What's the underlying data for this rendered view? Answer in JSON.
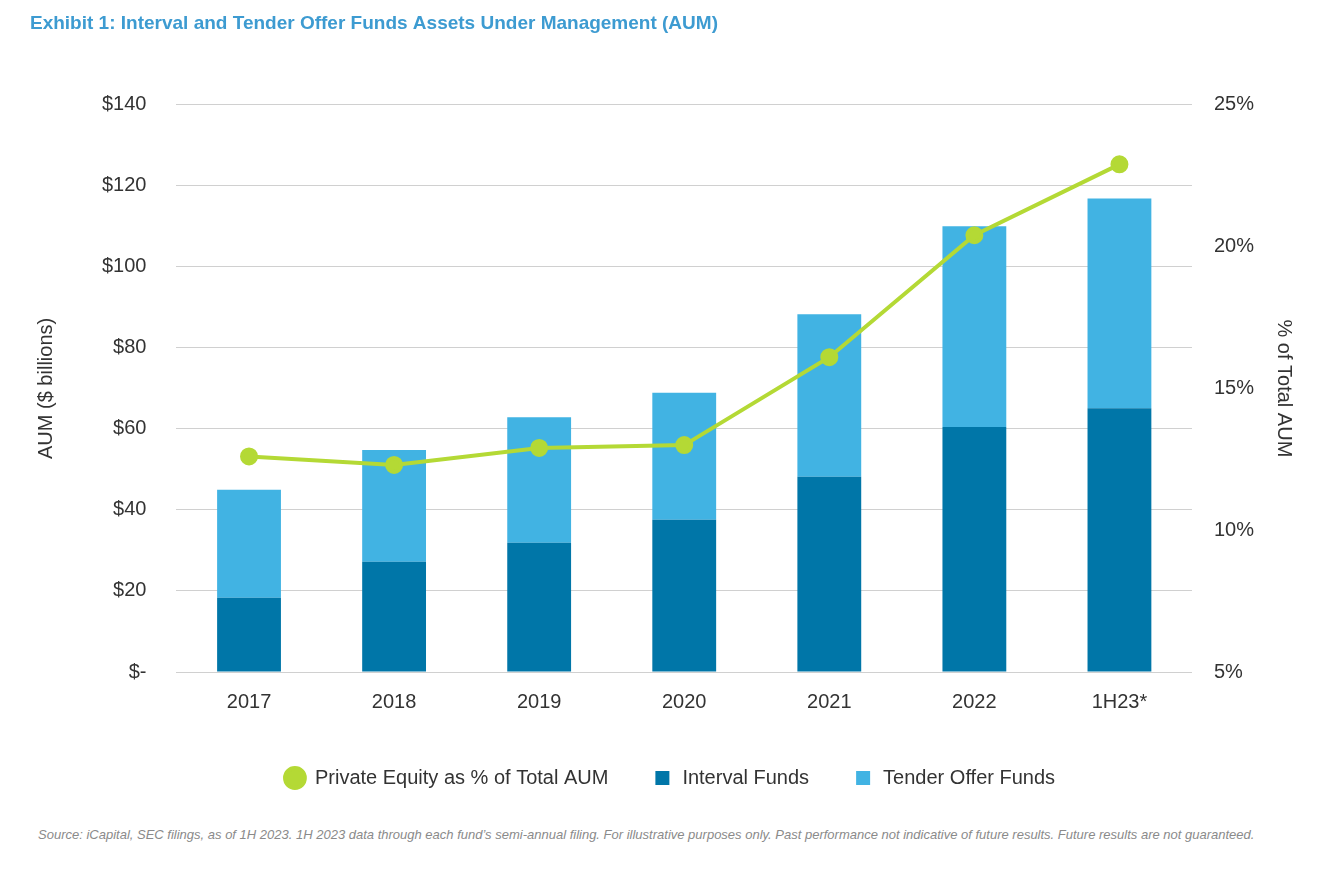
{
  "chart_data": {
    "type": "bar",
    "title": "Exhibit 1: Interval and Tender Offer Funds Assets Under Management (AUM)",
    "categories": [
      "2017",
      "2018",
      "2019",
      "2020",
      "2021",
      "2022",
      "1H23*"
    ],
    "series": [
      {
        "name": "Interval Funds",
        "color": "#0076a8",
        "values": [
          18.3,
          27.2,
          31.9,
          37.6,
          48.2,
          60.5,
          65.1
        ]
      },
      {
        "name": "Tender Offer Funds",
        "color": "#41b3e3",
        "values": [
          26.7,
          27.6,
          31.0,
          31.3,
          40.1,
          49.5,
          51.8
        ]
      },
      {
        "name": "Private Equity as % of Total AUM",
        "color": "#b4d935",
        "type": "line",
        "marker": "circle",
        "axis": "y2",
        "values": [
          12.6,
          12.3,
          12.9,
          13.0,
          16.1,
          20.4,
          22.9
        ]
      }
    ],
    "stacked": true,
    "ylabel": "AUM ($ billions)",
    "y2label": "% of Total AUM",
    "ylim": [
      0,
      140
    ],
    "yticks": [
      {
        "value": 0,
        "label": "$-"
      },
      {
        "value": 20,
        "label": "$20"
      },
      {
        "value": 40,
        "label": "$40"
      },
      {
        "value": 60,
        "label": "$60"
      },
      {
        "value": 80,
        "label": "$80"
      },
      {
        "value": 100,
        "label": "$100"
      },
      {
        "value": 120,
        "label": "$120"
      },
      {
        "value": 140,
        "label": "$140"
      }
    ],
    "y2lim": [
      5,
      25
    ],
    "y2ticks": [
      {
        "value": 5,
        "label": "5%"
      },
      {
        "value": 10,
        "label": "10%"
      },
      {
        "value": 15,
        "label": "15%"
      },
      {
        "value": 20,
        "label": "20%"
      },
      {
        "value": 25,
        "label": "25%"
      }
    ],
    "grid": true,
    "legend": "bottom",
    "source": "Source: iCapital, SEC filings, as of 1H 2023. 1H 2023 data through each fund’s semi-annual filing. For illustrative purposes only. Past performance not indicative of future results. Future results are not guaranteed."
  }
}
